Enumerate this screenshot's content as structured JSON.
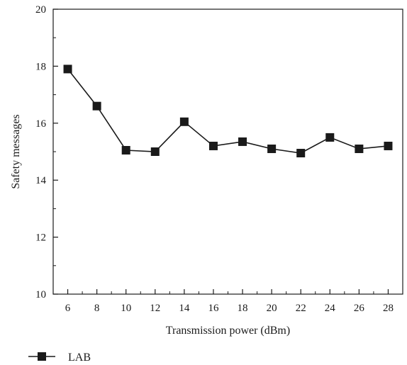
{
  "chart_data": {
    "type": "line",
    "title": "",
    "xlabel": "Transmission power (dBm)",
    "ylabel": "Safety messages",
    "xlim": [
      5,
      29
    ],
    "ylim": [
      10,
      20
    ],
    "x_ticks": [
      6,
      8,
      10,
      12,
      14,
      16,
      18,
      20,
      22,
      24,
      26,
      28
    ],
    "y_ticks": [
      10,
      12,
      14,
      16,
      18,
      20
    ],
    "grid": false,
    "legend_position": "bottom-left",
    "x": [
      6,
      8,
      10,
      12,
      14,
      16,
      18,
      20,
      22,
      24,
      26,
      28
    ],
    "series": [
      {
        "name": "LAB",
        "marker": "square",
        "color": "#1a1a1a",
        "values": [
          17.9,
          16.6,
          15.05,
          15.0,
          16.05,
          15.2,
          15.35,
          15.1,
          14.95,
          15.5,
          15.1,
          15.2
        ]
      }
    ]
  }
}
